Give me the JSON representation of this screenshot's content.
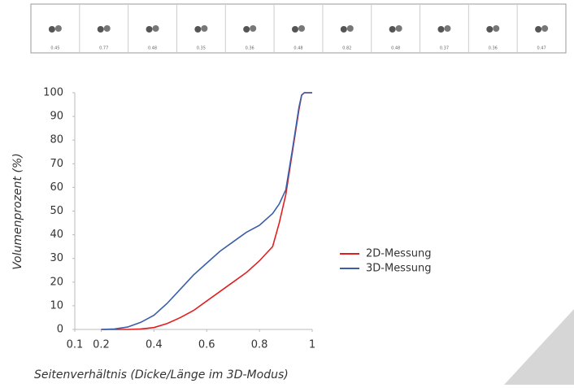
{
  "particles": [
    0.45,
    0.77,
    0.48,
    0.35,
    0.36,
    0.48,
    0.82,
    0.48,
    0.37,
    0.36,
    0.47
  ],
  "chart_data": {
    "type": "line",
    "x": [
      0.2,
      0.25,
      0.3,
      0.35,
      0.4,
      0.45,
      0.5,
      0.55,
      0.6,
      0.65,
      0.7,
      0.75,
      0.8,
      0.85,
      0.875,
      0.9,
      0.925,
      0.95,
      0.96,
      0.97,
      1.0
    ],
    "series": [
      {
        "name": "2D-Messung",
        "color": "#e02020",
        "values": [
          0,
          0,
          0,
          0.2,
          0.8,
          2.5,
          5,
          8,
          12,
          16,
          20,
          24,
          29,
          35,
          45,
          57,
          75,
          93,
          99,
          100,
          100
        ]
      },
      {
        "name": "3D-Messung",
        "color": "#3a5ea8",
        "values": [
          0,
          0.2,
          1,
          3,
          6,
          11,
          17,
          23,
          28,
          33,
          37,
          41,
          44,
          49,
          53,
          59,
          76,
          94,
          99,
          100,
          100
        ]
      }
    ],
    "xlim": [
      0.1,
      1
    ],
    "xticks": [
      0.1,
      0.2,
      0.4,
      0.6,
      0.8,
      1
    ],
    "ylim": [
      0,
      100
    ],
    "yticks": [
      0,
      10,
      20,
      30,
      40,
      50,
      60,
      70,
      80,
      90,
      100
    ],
    "x_label": "Seitenverhältnis (Dicke/Länge im 3D-Modus)",
    "y_label": "Volumenprozent (%)",
    "legend": "right"
  }
}
